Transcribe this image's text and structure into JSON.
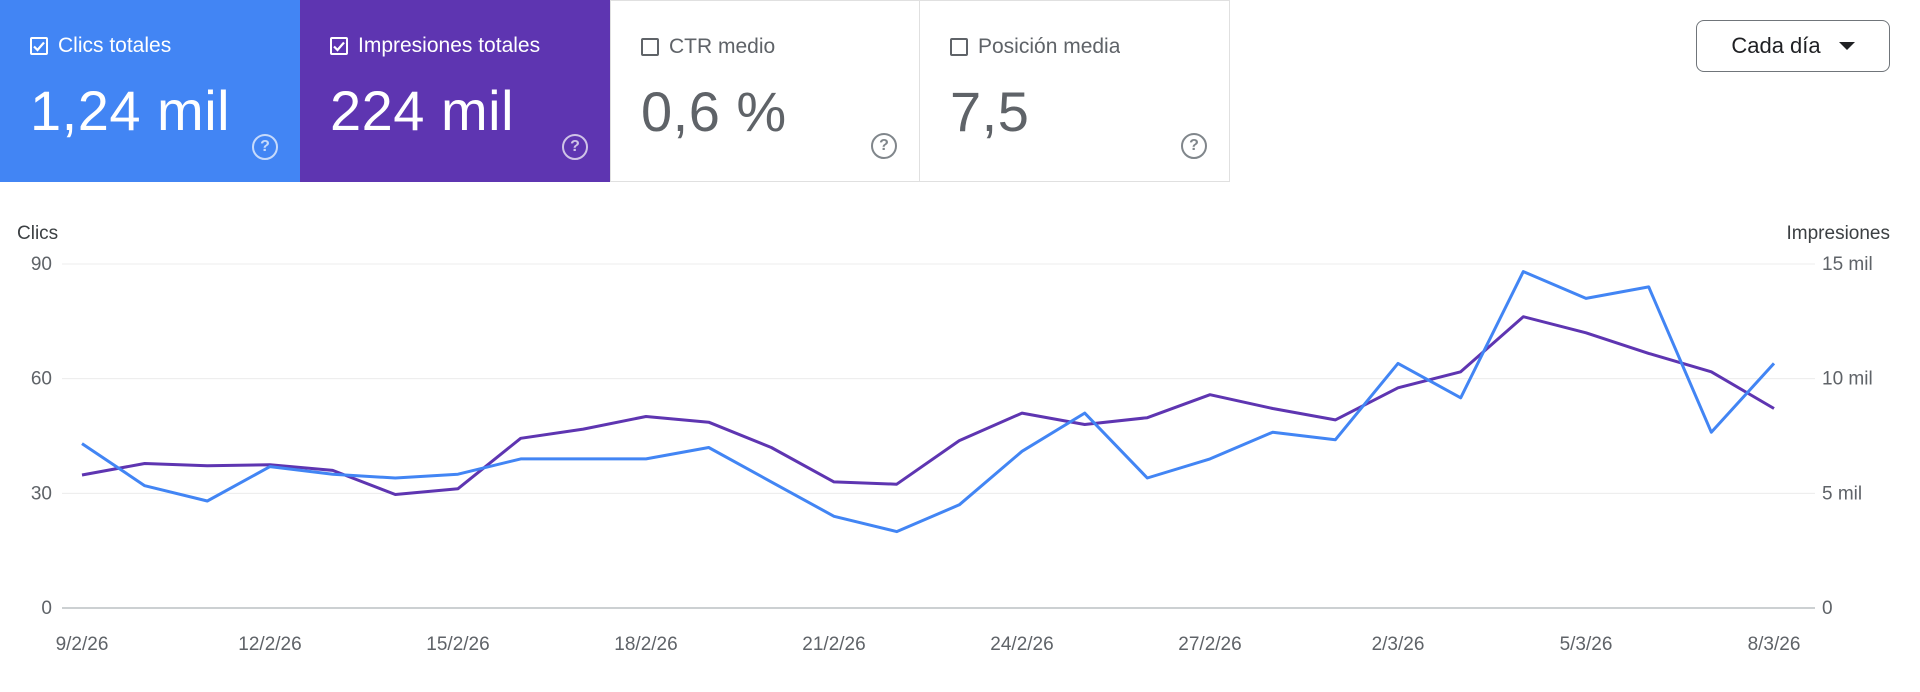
{
  "metrics": [
    {
      "label": "Clics totales",
      "value": "1,24 mil",
      "checked": true
    },
    {
      "label": "Impresiones totales",
      "value": "224 mil",
      "checked": true
    },
    {
      "label": "CTR medio",
      "value": "0,6 %",
      "checked": false
    },
    {
      "label": "Posición media",
      "value": "7,5",
      "checked": false
    }
  ],
  "help_glyph": "?",
  "period": {
    "label": "Cada día"
  },
  "colors": {
    "clicks": "#4285f4",
    "impressions": "#5e35b1"
  },
  "chart_data": {
    "type": "line",
    "left_axis_label": "Clics",
    "right_axis_label": "Impresiones",
    "left_ylim": [
      0,
      90
    ],
    "left_ticks": [
      "0",
      "30",
      "60",
      "90"
    ],
    "right_ylim": [
      0,
      15000
    ],
    "right_ticks": [
      "0",
      "5 mil",
      "10 mil",
      "15 mil"
    ],
    "x": [
      "9/2/26",
      "10/2/26",
      "11/2/26",
      "12/2/26",
      "13/2/26",
      "14/2/26",
      "15/2/26",
      "16/2/26",
      "17/2/26",
      "18/2/26",
      "19/2/26",
      "20/2/26",
      "21/2/26",
      "22/2/26",
      "23/2/26",
      "24/2/26",
      "25/2/26",
      "26/2/26",
      "27/2/26",
      "28/2/26",
      "1/3/26",
      "2/3/26",
      "3/3/26",
      "4/3/26",
      "5/3/26",
      "6/3/26",
      "7/3/26",
      "8/3/26"
    ],
    "x_tick_labels": [
      "9/2/26",
      "12/2/26",
      "15/2/26",
      "18/2/26",
      "21/2/26",
      "24/2/26",
      "27/2/26",
      "2/3/26",
      "5/3/26",
      "8/3/26"
    ],
    "grid": true,
    "series": [
      {
        "axis": "left",
        "values": [
          43,
          32,
          28,
          37,
          35,
          34,
          35,
          39,
          39,
          39,
          42,
          33,
          24,
          20,
          27,
          41,
          51,
          34,
          39,
          46,
          44,
          64,
          55,
          88,
          81,
          84,
          46,
          64
        ]
      },
      {
        "axis": "right",
        "values": [
          5800,
          6300,
          6200,
          6250,
          6000,
          4950,
          5200,
          7400,
          7800,
          8350,
          8100,
          7000,
          5500,
          5400,
          7300,
          8500,
          8000,
          8300,
          9300,
          8700,
          8200,
          9600,
          10300,
          12700,
          12000,
          11100,
          10300,
          8700
        ]
      }
    ]
  }
}
